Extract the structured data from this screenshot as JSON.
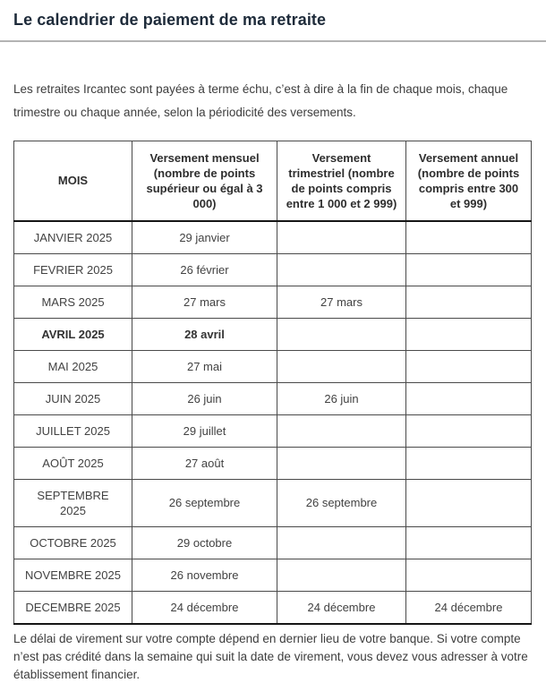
{
  "page": {
    "title": "Le calendrier de paiement de ma retraite",
    "intro": "Les retraites Ircantec sont payées à terme échu, c’est à dire à la fin de chaque mois, chaque trimestre ou chaque année, selon la périodicité des versements.",
    "footer": "Le délai de virement sur votre compte dépend en dernier lieu de votre banque. Si votre compte n’est pas crédité dans la semaine qui suit la date de virement, vous devez  vous adresser à votre établissement financier."
  },
  "table": {
    "headers": [
      "MOIS",
      "Versement mensuel (nombre de points supérieur ou égal à 3 000)",
      "Versement trimestriel (nombre de points compris entre 1 000 et 2 999)",
      "Versement annuel (nombre de points compris entre 300 et 999)"
    ],
    "rows": [
      {
        "month": "JANVIER 2025",
        "mensuel": "29 janvier",
        "trimestriel": "",
        "annuel": "",
        "highlight": false
      },
      {
        "month": "FEVRIER 2025",
        "mensuel": "26 février",
        "trimestriel": "",
        "annuel": "",
        "highlight": false
      },
      {
        "month": "MARS 2025",
        "mensuel": "27 mars",
        "trimestriel": "27 mars",
        "annuel": "",
        "highlight": false
      },
      {
        "month": "AVRIL 2025",
        "mensuel": "28 avril",
        "trimestriel": "",
        "annuel": "",
        "highlight": true
      },
      {
        "month": "MAI 2025",
        "mensuel": "27 mai",
        "trimestriel": "",
        "annuel": "",
        "highlight": false
      },
      {
        "month": "JUIN 2025",
        "mensuel": "26 juin",
        "trimestriel": "26 juin",
        "annuel": "",
        "highlight": false
      },
      {
        "month": "JUILLET 2025",
        "mensuel": "29 juillet",
        "trimestriel": "",
        "annuel": "",
        "highlight": false
      },
      {
        "month": "AOÛT 2025",
        "mensuel": "27 août",
        "trimestriel": "",
        "annuel": "",
        "highlight": false
      },
      {
        "month": "SEPTEMBRE\n2025",
        "mensuel": "26 septembre",
        "trimestriel": "26 septembre",
        "annuel": "",
        "highlight": false
      },
      {
        "month": "OCTOBRE 2025",
        "mensuel": "29 octobre",
        "trimestriel": "",
        "annuel": "",
        "highlight": false
      },
      {
        "month": "NOVEMBRE 2025",
        "mensuel": "26 novembre",
        "trimestriel": "",
        "annuel": "",
        "highlight": false
      },
      {
        "month": "DECEMBRE 2025",
        "mensuel": "24 décembre",
        "trimestriel": "24 décembre",
        "annuel": "24 décembre",
        "highlight": false
      }
    ]
  },
  "colors": {
    "title": "#1e2b3a",
    "body_text": "#3d3d3d",
    "table_border": "#4a4a4a",
    "header_separator": "#161616",
    "divider": "#b3b3b3"
  }
}
